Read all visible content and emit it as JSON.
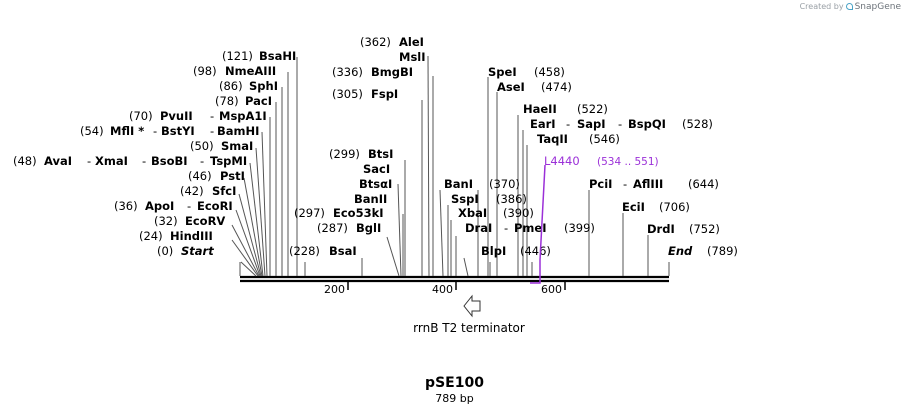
{
  "credit": {
    "prefix": "Created by",
    "brand": "SnapGene",
    "logo_icon": "snapgene-logo-icon"
  },
  "plasmid": {
    "name": "pSE100",
    "length_label": "789 bp"
  },
  "colors": {
    "primer": "#9b30d8",
    "line": "#555555",
    "backbone": "#000000"
  },
  "scale": {
    "ticks": [
      "200",
      "400",
      "600"
    ]
  },
  "feature": {
    "name": "rrnB T2 terminator",
    "icon": "arrow-left-icon"
  },
  "primer": {
    "name": "L4440",
    "range": "(534 .. 551)"
  },
  "sites": {
    "left": [
      {
        "name": "BsaHI",
        "pos": "(121)"
      },
      {
        "name": "NmeAIII",
        "pos": "(98)"
      },
      {
        "name": "SphI",
        "pos": "(86)"
      },
      {
        "name": "PacI",
        "pos": "(78)"
      },
      {
        "names": [
          "PvuII",
          "MspA1I"
        ],
        "pos": "(70)"
      },
      {
        "names": [
          "MflI *",
          "BstYI",
          "BamHI"
        ],
        "pos": "(54)"
      },
      {
        "name": "SmaI",
        "pos": "(50)"
      },
      {
        "names": [
          "AvaI",
          "XmaI",
          "BsoBI",
          "TspMI"
        ],
        "pos": "(48)"
      },
      {
        "name": "PstI",
        "pos": "(46)"
      },
      {
        "name": "SfcI",
        "pos": "(42)"
      },
      {
        "names": [
          "ApoI",
          "EcoRI"
        ],
        "pos": "(36)"
      },
      {
        "name": "EcoRV",
        "pos": "(32)"
      },
      {
        "name": "HindIII",
        "pos": "(24)"
      },
      {
        "name": "Start",
        "pos": "(0)"
      }
    ],
    "middle": [
      {
        "name": "AleI",
        "pos": "(362)"
      },
      {
        "name": "MslI",
        "pos": ""
      },
      {
        "name": "BmgBI",
        "pos": "(336)"
      },
      {
        "name": "FspI",
        "pos": "(305)"
      },
      {
        "name": "BtsI",
        "pos": "(299)"
      },
      {
        "name": "SacI",
        "pos": ""
      },
      {
        "name": "BtsαI",
        "pos": ""
      },
      {
        "name": "BanII",
        "pos": ""
      },
      {
        "name": "Eco53kI",
        "pos": "(297)"
      },
      {
        "name": "BglI",
        "pos": "(287)"
      },
      {
        "name": "BsaI",
        "pos": "(228)"
      }
    ],
    "right": [
      {
        "name": "SpeI",
        "pos": "(458)"
      },
      {
        "name": "AseI",
        "pos": "(474)"
      },
      {
        "name": "HaeII",
        "pos": "(522)"
      },
      {
        "names": [
          "EarI",
          "SapI",
          "BspQI"
        ],
        "pos": "(528)"
      },
      {
        "name": "TaqII",
        "pos": "(546)"
      },
      {
        "name": "BanI",
        "pos": "(370)"
      },
      {
        "name": "SspI",
        "pos": "(386)"
      },
      {
        "name": "XbaI",
        "pos": "(390)"
      },
      {
        "names": [
          "DraI",
          "PmeI"
        ],
        "pos": "(399)"
      },
      {
        "name": "BlpI",
        "pos": "(446)"
      },
      {
        "names": [
          "PciI",
          "AflIII"
        ],
        "pos": "(644)"
      },
      {
        "name": "EciI",
        "pos": "(706)"
      },
      {
        "name": "DrdI",
        "pos": "(752)"
      },
      {
        "name": "End",
        "pos": "(789)"
      }
    ]
  }
}
